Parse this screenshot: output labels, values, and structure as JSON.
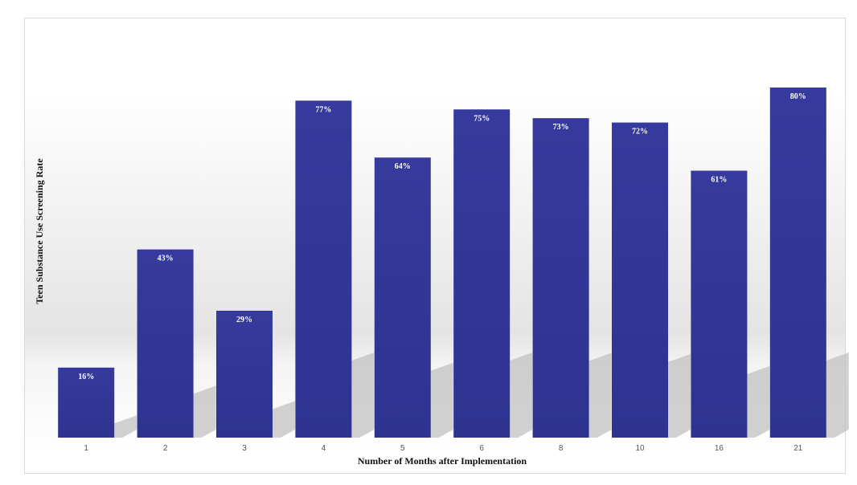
{
  "chart_data": {
    "type": "bar",
    "categories": [
      "1",
      "2",
      "3",
      "4",
      "5",
      "6",
      "8",
      "10",
      "16",
      "21"
    ],
    "values": [
      16,
      43,
      29,
      77,
      64,
      75,
      73,
      72,
      61,
      80
    ],
    "value_labels": [
      "16%",
      "43%",
      "29%",
      "77%",
      "64%",
      "75%",
      "73%",
      "72%",
      "61%",
      "80%"
    ],
    "title": "",
    "xlabel": "Number of Months after Implementation",
    "ylabel": "Teen Substance Use Screening Rate",
    "ylim": [
      0,
      85
    ],
    "grid": false,
    "legend": "none",
    "bar_color": "#2e3390",
    "bar_color_light": "#363a9c",
    "shadow_color": "#bdbdbd"
  }
}
